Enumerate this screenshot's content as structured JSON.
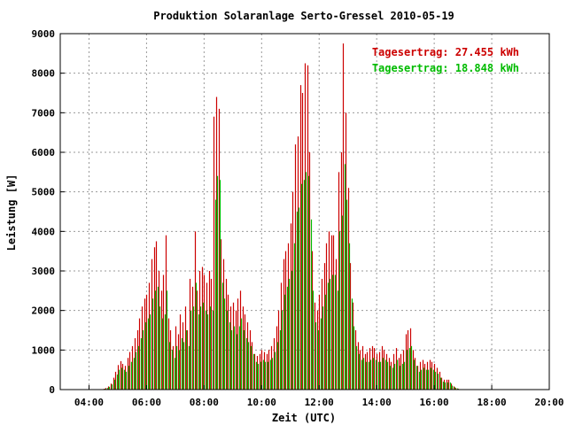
{
  "chart_data": {
    "type": "bar",
    "title": "Produktion Solaranlage Serto-Gressel 2010-05-19",
    "xlabel": "Zeit (UTC)",
    "ylabel": "Leistung [W]",
    "x_range_hours": [
      3.0,
      20.0
    ],
    "ylim": [
      0,
      9000
    ],
    "x_ticks": [
      {
        "hour": 4,
        "label": "04:00"
      },
      {
        "hour": 6,
        "label": "06:00"
      },
      {
        "hour": 8,
        "label": "08:00"
      },
      {
        "hour": 10,
        "label": "10:00"
      },
      {
        "hour": 12,
        "label": "12:00"
      },
      {
        "hour": 14,
        "label": "14:00"
      },
      {
        "hour": 16,
        "label": "16:00"
      },
      {
        "hour": 18,
        "label": "18:00"
      },
      {
        "hour": 20,
        "label": "20:00"
      }
    ],
    "y_ticks": [
      {
        "value": 0,
        "label": "0"
      },
      {
        "value": 1000,
        "label": "1000"
      },
      {
        "value": 2000,
        "label": "2000"
      },
      {
        "value": 3000,
        "label": "3000"
      },
      {
        "value": 4000,
        "label": "4000"
      },
      {
        "value": 5000,
        "label": "5000"
      },
      {
        "value": 6000,
        "label": "6000"
      },
      {
        "value": 7000,
        "label": "7000"
      },
      {
        "value": 8000,
        "label": "8000"
      },
      {
        "value": 9000,
        "label": "9000"
      }
    ],
    "grid": true,
    "legend_position": "top-right",
    "series": [
      {
        "label": "Tagesertrag: 27.455 kWh",
        "color": "#cc0000",
        "points": [
          [
            4.5,
            20
          ],
          [
            4.583,
            40
          ],
          [
            4.667,
            80
          ],
          [
            4.75,
            150
          ],
          [
            4.833,
            300
          ],
          [
            4.917,
            450
          ],
          [
            5.0,
            620
          ],
          [
            5.083,
            720
          ],
          [
            5.167,
            650
          ],
          [
            5.25,
            600
          ],
          [
            5.333,
            800
          ],
          [
            5.417,
            950
          ],
          [
            5.5,
            1100
          ],
          [
            5.583,
            1300
          ],
          [
            5.667,
            1500
          ],
          [
            5.75,
            1800
          ],
          [
            5.833,
            2100
          ],
          [
            5.917,
            2300
          ],
          [
            6.0,
            2400
          ],
          [
            6.083,
            2700
          ],
          [
            6.167,
            3300
          ],
          [
            6.25,
            3600
          ],
          [
            6.333,
            3750
          ],
          [
            6.417,
            3000
          ],
          [
            6.5,
            2500
          ],
          [
            6.583,
            2900
          ],
          [
            6.667,
            3900
          ],
          [
            6.75,
            1800
          ],
          [
            6.833,
            1500
          ],
          [
            6.917,
            1100
          ],
          [
            7.0,
            1600
          ],
          [
            7.083,
            1400
          ],
          [
            7.167,
            1900
          ],
          [
            7.25,
            1700
          ],
          [
            7.333,
            2100
          ],
          [
            7.417,
            1500
          ],
          [
            7.5,
            2800
          ],
          [
            7.583,
            2600
          ],
          [
            7.667,
            4000
          ],
          [
            7.75,
            2500
          ],
          [
            7.833,
            3000
          ],
          [
            7.917,
            3100
          ],
          [
            8.0,
            2900
          ],
          [
            8.083,
            2700
          ],
          [
            8.167,
            3000
          ],
          [
            8.25,
            2800
          ],
          [
            8.333,
            6900
          ],
          [
            8.417,
            7400
          ],
          [
            8.5,
            7100
          ],
          [
            8.583,
            3800
          ],
          [
            8.667,
            3300
          ],
          [
            8.75,
            2800
          ],
          [
            8.833,
            2400
          ],
          [
            8.917,
            2100
          ],
          [
            9.0,
            2200
          ],
          [
            9.083,
            2000
          ],
          [
            9.167,
            2300
          ],
          [
            9.25,
            2500
          ],
          [
            9.333,
            2100
          ],
          [
            9.417,
            1900
          ],
          [
            9.5,
            1700
          ],
          [
            9.583,
            1500
          ],
          [
            9.667,
            1200
          ],
          [
            9.75,
            900
          ],
          [
            9.833,
            850
          ],
          [
            9.917,
            900
          ],
          [
            10.0,
            1000
          ],
          [
            10.083,
            950
          ],
          [
            10.167,
            900
          ],
          [
            10.25,
            1000
          ],
          [
            10.333,
            1100
          ],
          [
            10.417,
            1300
          ],
          [
            10.5,
            1600
          ],
          [
            10.583,
            2000
          ],
          [
            10.667,
            2700
          ],
          [
            10.75,
            3300
          ],
          [
            10.833,
            3500
          ],
          [
            10.917,
            3700
          ],
          [
            11.0,
            4200
          ],
          [
            11.083,
            5000
          ],
          [
            11.167,
            6200
          ],
          [
            11.25,
            6400
          ],
          [
            11.333,
            7700
          ],
          [
            11.417,
            7500
          ],
          [
            11.5,
            8250
          ],
          [
            11.583,
            8200
          ],
          [
            11.667,
            6000
          ],
          [
            11.75,
            3500
          ],
          [
            11.833,
            2200
          ],
          [
            11.917,
            2000
          ],
          [
            12.0,
            2400
          ],
          [
            12.083,
            2800
          ],
          [
            12.167,
            3200
          ],
          [
            12.25,
            3700
          ],
          [
            12.333,
            4000
          ],
          [
            12.417,
            3900
          ],
          [
            12.5,
            3900
          ],
          [
            12.583,
            3300
          ],
          [
            12.667,
            5500
          ],
          [
            12.75,
            6000
          ],
          [
            12.833,
            8750
          ],
          [
            12.917,
            7000
          ],
          [
            13.0,
            5100
          ],
          [
            13.083,
            3200
          ],
          [
            13.167,
            2200
          ],
          [
            13.25,
            1500
          ],
          [
            13.333,
            1200
          ],
          [
            13.417,
            1000
          ],
          [
            13.5,
            1100
          ],
          [
            13.583,
            900
          ],
          [
            13.667,
            950
          ],
          [
            13.75,
            1050
          ],
          [
            13.833,
            1100
          ],
          [
            13.917,
            1050
          ],
          [
            14.0,
            900
          ],
          [
            14.083,
            950
          ],
          [
            14.167,
            1100
          ],
          [
            14.25,
            1000
          ],
          [
            14.333,
            900
          ],
          [
            14.417,
            800
          ],
          [
            14.5,
            700
          ],
          [
            14.583,
            900
          ],
          [
            14.667,
            1050
          ],
          [
            14.75,
            800
          ],
          [
            14.833,
            900
          ],
          [
            14.917,
            1000
          ],
          [
            15.0,
            1400
          ],
          [
            15.083,
            1500
          ],
          [
            15.167,
            1550
          ],
          [
            15.25,
            1000
          ],
          [
            15.333,
            800
          ],
          [
            15.417,
            600
          ],
          [
            15.5,
            700
          ],
          [
            15.583,
            750
          ],
          [
            15.667,
            650
          ],
          [
            15.75,
            700
          ],
          [
            15.833,
            750
          ],
          [
            15.917,
            700
          ],
          [
            16.0,
            650
          ],
          [
            16.083,
            550
          ],
          [
            16.167,
            450
          ],
          [
            16.25,
            300
          ],
          [
            16.333,
            250
          ],
          [
            16.417,
            250
          ],
          [
            16.5,
            250
          ],
          [
            16.583,
            150
          ],
          [
            16.667,
            80
          ],
          [
            16.75,
            40
          ],
          [
            16.833,
            20
          ]
        ]
      },
      {
        "label": "Tagesertrag: 18.848 kWh",
        "color": "#00bb00",
        "points": [
          [
            4.542,
            20
          ],
          [
            4.625,
            40
          ],
          [
            4.708,
            70
          ],
          [
            4.792,
            130
          ],
          [
            4.875,
            250
          ],
          [
            4.958,
            380
          ],
          [
            5.042,
            500
          ],
          [
            5.125,
            550
          ],
          [
            5.208,
            500
          ],
          [
            5.292,
            450
          ],
          [
            5.375,
            600
          ],
          [
            5.458,
            700
          ],
          [
            5.542,
            800
          ],
          [
            5.625,
            950
          ],
          [
            5.708,
            1100
          ],
          [
            5.792,
            1300
          ],
          [
            5.875,
            1500
          ],
          [
            5.958,
            1700
          ],
          [
            6.042,
            1800
          ],
          [
            6.125,
            1900
          ],
          [
            6.208,
            2300
          ],
          [
            6.292,
            2500
          ],
          [
            6.375,
            2600
          ],
          [
            6.458,
            2100
          ],
          [
            6.542,
            1800
          ],
          [
            6.625,
            1900
          ],
          [
            6.708,
            2500
          ],
          [
            6.792,
            1200
          ],
          [
            6.875,
            1000
          ],
          [
            6.958,
            800
          ],
          [
            7.042,
            1100
          ],
          [
            7.125,
            1000
          ],
          [
            7.208,
            1300
          ],
          [
            7.292,
            1200
          ],
          [
            7.375,
            1500
          ],
          [
            7.458,
            1100
          ],
          [
            7.542,
            2000
          ],
          [
            7.625,
            2100
          ],
          [
            7.708,
            2700
          ],
          [
            7.792,
            1900
          ],
          [
            7.875,
            2100
          ],
          [
            7.958,
            2200
          ],
          [
            8.042,
            2000
          ],
          [
            8.125,
            1900
          ],
          [
            8.208,
            2100
          ],
          [
            8.292,
            2000
          ],
          [
            8.375,
            4800
          ],
          [
            8.458,
            5400
          ],
          [
            8.542,
            5300
          ],
          [
            8.625,
            2700
          ],
          [
            8.708,
            2300
          ],
          [
            8.792,
            2000
          ],
          [
            8.875,
            1700
          ],
          [
            8.958,
            1500
          ],
          [
            9.042,
            1600
          ],
          [
            9.125,
            1400
          ],
          [
            9.208,
            1600
          ],
          [
            9.292,
            1800
          ],
          [
            9.375,
            1500
          ],
          [
            9.458,
            1300
          ],
          [
            9.542,
            1200
          ],
          [
            9.625,
            1100
          ],
          [
            9.708,
            900
          ],
          [
            9.792,
            700
          ],
          [
            9.875,
            650
          ],
          [
            9.958,
            700
          ],
          [
            10.042,
            750
          ],
          [
            10.125,
            700
          ],
          [
            10.208,
            700
          ],
          [
            10.292,
            750
          ],
          [
            10.375,
            800
          ],
          [
            10.458,
            950
          ],
          [
            10.542,
            1200
          ],
          [
            10.625,
            1500
          ],
          [
            10.708,
            2000
          ],
          [
            10.792,
            2400
          ],
          [
            10.875,
            2600
          ],
          [
            10.958,
            2800
          ],
          [
            11.042,
            3000
          ],
          [
            11.125,
            3700
          ],
          [
            11.208,
            4500
          ],
          [
            11.292,
            4600
          ],
          [
            11.375,
            5200
          ],
          [
            11.458,
            5300
          ],
          [
            11.542,
            5500
          ],
          [
            11.625,
            5400
          ],
          [
            11.708,
            4300
          ],
          [
            11.792,
            2500
          ],
          [
            11.875,
            1700
          ],
          [
            11.958,
            1500
          ],
          [
            12.042,
            1800
          ],
          [
            12.125,
            2100
          ],
          [
            12.208,
            2400
          ],
          [
            12.292,
            2700
          ],
          [
            12.375,
            2800
          ],
          [
            12.458,
            2900
          ],
          [
            12.542,
            2900
          ],
          [
            12.625,
            2500
          ],
          [
            12.708,
            4000
          ],
          [
            12.792,
            4400
          ],
          [
            12.875,
            5700
          ],
          [
            12.958,
            4800
          ],
          [
            13.042,
            3700
          ],
          [
            13.125,
            2300
          ],
          [
            13.208,
            1600
          ],
          [
            13.292,
            1100
          ],
          [
            13.375,
            900
          ],
          [
            13.458,
            750
          ],
          [
            13.542,
            800
          ],
          [
            13.625,
            700
          ],
          [
            13.708,
            700
          ],
          [
            13.792,
            750
          ],
          [
            13.875,
            800
          ],
          [
            13.958,
            750
          ],
          [
            14.042,
            700
          ],
          [
            14.125,
            700
          ],
          [
            14.208,
            800
          ],
          [
            14.292,
            750
          ],
          [
            14.375,
            700
          ],
          [
            14.458,
            600
          ],
          [
            14.542,
            550
          ],
          [
            14.625,
            650
          ],
          [
            14.708,
            750
          ],
          [
            14.792,
            600
          ],
          [
            14.875,
            650
          ],
          [
            14.958,
            700
          ],
          [
            15.042,
            1000
          ],
          [
            15.125,
            1050
          ],
          [
            15.208,
            1100
          ],
          [
            15.292,
            750
          ],
          [
            15.375,
            600
          ],
          [
            15.458,
            450
          ],
          [
            15.542,
            500
          ],
          [
            15.625,
            550
          ],
          [
            15.708,
            500
          ],
          [
            15.792,
            500
          ],
          [
            15.875,
            550
          ],
          [
            15.958,
            500
          ],
          [
            16.042,
            450
          ],
          [
            16.125,
            400
          ],
          [
            16.208,
            300
          ],
          [
            16.292,
            200
          ],
          [
            16.375,
            180
          ],
          [
            16.458,
            180
          ],
          [
            16.542,
            180
          ],
          [
            16.625,
            100
          ],
          [
            16.708,
            60
          ],
          [
            16.792,
            30
          ]
        ]
      }
    ]
  }
}
